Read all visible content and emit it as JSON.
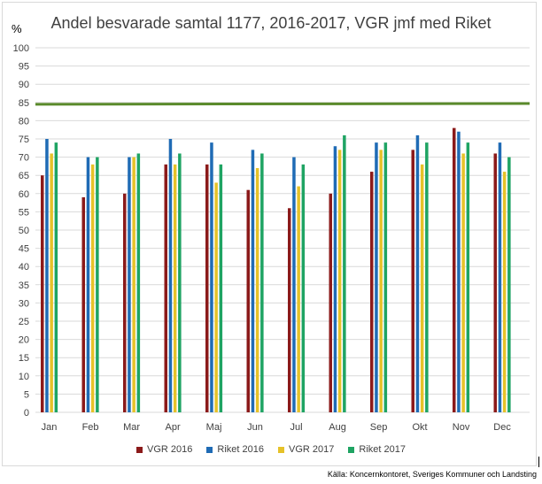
{
  "chart_data": {
    "type": "bar",
    "title": "Andel besvarade samtal 1177, 2016-2017, VGR jmf med Riket",
    "ylabel": "%",
    "xlabel": "",
    "ylim": [
      0,
      100
    ],
    "yticks": [
      0,
      5,
      10,
      15,
      20,
      25,
      30,
      35,
      40,
      45,
      50,
      55,
      60,
      65,
      70,
      75,
      80,
      85,
      90,
      95,
      100
    ],
    "grid": true,
    "legend_position": "bottom",
    "categories": [
      "Jan",
      "Feb",
      "Mar",
      "Apr",
      "Maj",
      "Jun",
      "Jul",
      "Aug",
      "Sep",
      "Okt",
      "Nov",
      "Dec"
    ],
    "series": [
      {
        "name": "VGR 2016",
        "color": "#8b1a1a",
        "values": [
          65,
          59,
          60,
          68,
          68,
          61,
          56,
          60,
          66,
          72,
          78,
          71
        ]
      },
      {
        "name": "Riket 2016",
        "color": "#1f6bb5",
        "values": [
          75,
          70,
          70,
          75,
          74,
          72,
          70,
          73,
          74,
          76,
          77,
          74
        ]
      },
      {
        "name": "VGR 2017",
        "color": "#e6c229",
        "values": [
          71,
          68,
          70,
          68,
          63,
          67,
          62,
          72,
          72,
          68,
          71,
          66
        ]
      },
      {
        "name": "Riket 2017",
        "color": "#1fa463",
        "values": [
          74,
          70,
          71,
          71,
          68,
          71,
          68,
          76,
          74,
          74,
          74,
          70
        ]
      }
    ],
    "target_line": {
      "value": 84.5,
      "value_end": 84.7,
      "color": "#5a8a2b"
    }
  },
  "source_text": "Källa: Koncernkontoret, Sveriges Kommuner och Landsting"
}
